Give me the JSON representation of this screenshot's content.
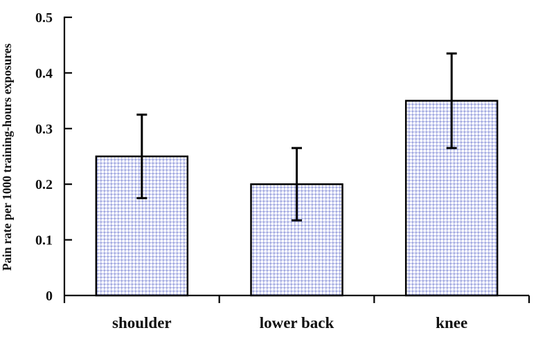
{
  "chart_data": {
    "type": "bar",
    "title": "",
    "xlabel": "",
    "ylabel": "Pain rate per 1000 training-hours exposures",
    "categories": [
      "shoulder",
      "lower back",
      "knee"
    ],
    "values": [
      0.25,
      0.2,
      0.35
    ],
    "error_low": [
      0.175,
      0.135,
      0.265
    ],
    "error_high": [
      0.325,
      0.265,
      0.435
    ],
    "ylim": [
      0,
      0.5
    ],
    "yticks": [
      0,
      0.1,
      0.2,
      0.3,
      0.4,
      0.5
    ],
    "ytick_labels": [
      "0",
      "0.1",
      "0.2",
      "0.3",
      "0.4",
      "0.5"
    ],
    "grid": false,
    "legend": false,
    "colors": {
      "background": "#ffffff",
      "axis": "#000000",
      "bar_border": "#000000",
      "bar_fill_base": "#ffffff",
      "bar_pattern_line": "#bdc2ec",
      "bar_pattern_dot": "#9099d8",
      "error_bar": "#000000",
      "text": "#111111"
    }
  }
}
